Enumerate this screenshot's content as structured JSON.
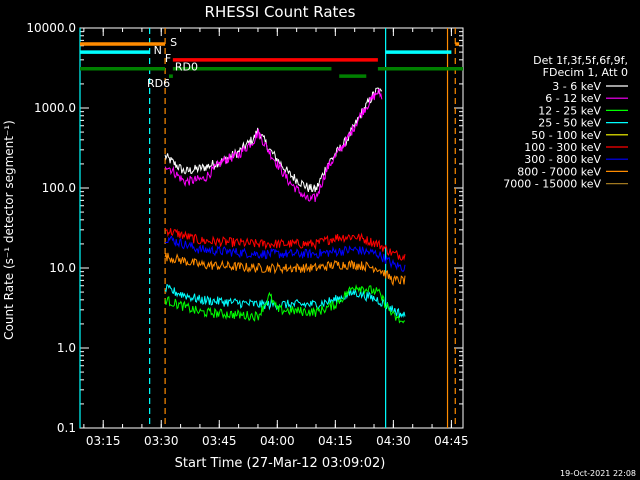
{
  "chart_data": {
    "type": "line",
    "title": "RHESSI Count Rates",
    "xlabel": "Start Time (27-Mar-12 03:09:02)",
    "ylabel": "Count Rate (s⁻¹ detector segment⁻¹)",
    "y_scale": "log",
    "ylim": [
      0.1,
      10000
    ],
    "xlim": [
      "03:09",
      "04:48"
    ],
    "x_ticks": [
      "03:15",
      "03:30",
      "03:45",
      "04:00",
      "04:15",
      "04:30",
      "04:45"
    ],
    "y_ticks": [
      "0.1",
      "1.0",
      "10.0",
      "100.0",
      "1000.0",
      "10000.0"
    ],
    "legend_position": "right",
    "legend_header": [
      "Det 1f,3f,5f,6f,9f,",
      "FDecim 1, Att 0"
    ],
    "series": [
      {
        "name": "3 - 6 keV",
        "color": "#ffffff"
      },
      {
        "name": "6 - 12 keV",
        "color": "#ff00ff"
      },
      {
        "name": "12 - 25 keV",
        "color": "#00ff00"
      },
      {
        "name": "25 - 50 keV",
        "color": "#00ffff"
      },
      {
        "name": "50 - 100 keV",
        "color": "#ffff00"
      },
      {
        "name": "100 - 300 keV",
        "color": "#ff0000"
      },
      {
        "name": "300 - 800 keV",
        "color": "#0000ff"
      },
      {
        "name": "800 - 7000 keV",
        "color": "#ff8c00"
      },
      {
        "name": "7000 - 15000 keV",
        "color": "#a07820"
      }
    ],
    "curves": [
      {
        "color": "#ffffff",
        "points": [
          [
            "03:31",
            250
          ],
          [
            "03:36",
            160
          ],
          [
            "03:41",
            180
          ],
          [
            "03:46",
            220
          ],
          [
            "03:50",
            280
          ],
          [
            "03:54",
            420
          ],
          [
            "03:55",
            530
          ],
          [
            "03:58",
            300
          ],
          [
            "04:03",
            150
          ],
          [
            "04:08",
            100
          ],
          [
            "04:10",
            95
          ],
          [
            "04:13",
            200
          ],
          [
            "04:18",
            400
          ],
          [
            "04:22",
            900
          ],
          [
            "04:25",
            1500
          ],
          [
            "04:26",
            1700
          ],
          [
            "04:27",
            1500
          ]
        ]
      },
      {
        "color": "#ff00ff",
        "points": [
          [
            "03:31",
            200
          ],
          [
            "03:36",
            120
          ],
          [
            "03:41",
            130
          ],
          [
            "03:46",
            220
          ],
          [
            "03:50",
            260
          ],
          [
            "03:54",
            400
          ],
          [
            "03:55",
            500
          ],
          [
            "03:58",
            280
          ],
          [
            "04:03",
            120
          ],
          [
            "04:08",
            70
          ],
          [
            "04:10",
            75
          ],
          [
            "04:13",
            180
          ],
          [
            "04:18",
            400
          ],
          [
            "04:22",
            900
          ],
          [
            "04:25",
            1400
          ],
          [
            "04:26",
            1600
          ],
          [
            "04:27",
            1400
          ]
        ]
      },
      {
        "color": "#ff0000",
        "points": [
          [
            "03:31",
            30
          ],
          [
            "03:40",
            22
          ],
          [
            "03:55",
            20
          ],
          [
            "04:10",
            20
          ],
          [
            "04:15",
            24
          ],
          [
            "04:20",
            25
          ],
          [
            "04:26",
            20
          ],
          [
            "04:30",
            15
          ],
          [
            "04:33",
            14
          ]
        ]
      },
      {
        "color": "#0000ff",
        "points": [
          [
            "03:31",
            24
          ],
          [
            "03:40",
            17
          ],
          [
            "03:55",
            15
          ],
          [
            "04:10",
            15
          ],
          [
            "04:15",
            16
          ],
          [
            "04:20",
            17
          ],
          [
            "04:26",
            15
          ],
          [
            "04:30",
            11
          ],
          [
            "04:33",
            10
          ]
        ]
      },
      {
        "color": "#ff8c00",
        "points": [
          [
            "03:31",
            14
          ],
          [
            "03:40",
            11
          ],
          [
            "03:55",
            10
          ],
          [
            "04:10",
            10
          ],
          [
            "04:15",
            11
          ],
          [
            "04:20",
            11
          ],
          [
            "04:26",
            10
          ],
          [
            "04:30",
            7
          ],
          [
            "04:33",
            7
          ]
        ]
      },
      {
        "color": "#00ffff",
        "points": [
          [
            "03:31",
            5.5
          ],
          [
            "03:40",
            4
          ],
          [
            "03:55",
            3.5
          ],
          [
            "04:10",
            3.5
          ],
          [
            "04:15",
            4
          ],
          [
            "04:20",
            5
          ],
          [
            "04:26",
            4
          ],
          [
            "04:30",
            3
          ],
          [
            "04:33",
            2.5
          ]
        ]
      },
      {
        "color": "#00ff00",
        "points": [
          [
            "03:31",
            4
          ],
          [
            "03:40",
            2.8
          ],
          [
            "03:55",
            2.5
          ],
          [
            "03:58",
            4.5
          ],
          [
            "04:00",
            3
          ],
          [
            "04:10",
            2.8
          ],
          [
            "04:15",
            3.5
          ],
          [
            "04:20",
            6
          ],
          [
            "04:26",
            5
          ],
          [
            "04:30",
            2.5
          ],
          [
            "04:33",
            2
          ]
        ]
      }
    ],
    "time_bars": [
      {
        "label": "S",
        "color": "#ff8c00",
        "level": 6300,
        "segments": [
          [
            "03:09",
            "03:31"
          ],
          [
            "04:46",
            "04:47"
          ]
        ]
      },
      {
        "label": "N",
        "color": "#00ffff",
        "level": 5000,
        "segments": [
          [
            "03:09",
            "03:27"
          ],
          [
            "04:28",
            "04:45"
          ]
        ]
      },
      {
        "label": "F",
        "color": "#ff0000",
        "level": 4000,
        "segments": [
          [
            "03:33",
            "04:26"
          ]
        ]
      },
      {
        "label": "RD0",
        "color": "#008000",
        "level": 3100,
        "segments": [
          [
            "03:09",
            "03:31"
          ],
          [
            "03:33",
            "04:14"
          ],
          [
            "04:26",
            "04:48"
          ]
        ]
      },
      {
        "label": "RD6",
        "color": "#008000",
        "level": 2500,
        "segments": [
          [
            "03:32",
            "03:33"
          ],
          [
            "04:16",
            "04:23"
          ]
        ]
      }
    ],
    "vertical_lines": [
      {
        "time": "03:09",
        "color": "#00ffff",
        "style": "solid"
      },
      {
        "time": "03:27",
        "color": "#00ffff",
        "style": "dashed"
      },
      {
        "time": "03:31",
        "color": "#ff8c00",
        "style": "dashed"
      },
      {
        "time": "04:28",
        "color": "#00ffff",
        "style": "solid"
      },
      {
        "time": "04:44",
        "color": "#ff8c00",
        "style": "solid"
      },
      {
        "time": "04:46",
        "color": "#ff8c00",
        "style": "dashed"
      }
    ],
    "footer_date": "19-Oct-2021 22:08"
  }
}
